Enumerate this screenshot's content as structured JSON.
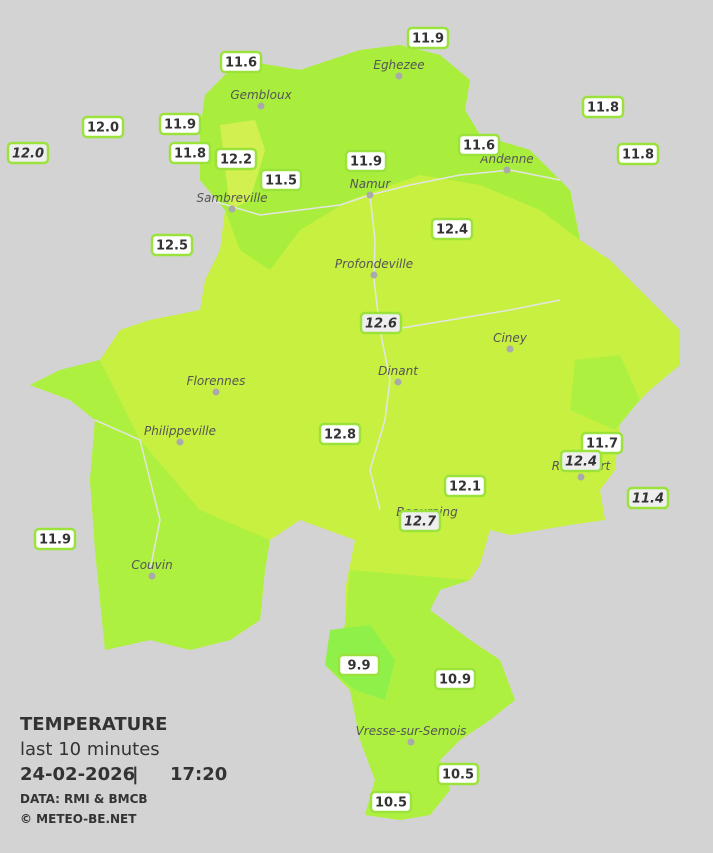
{
  "legend": {
    "title": "TEMPERATURE",
    "subtitle": "last 10 minutes",
    "date": "24-02-2026",
    "time": "17:20",
    "source": "DATA: RMI & BMCB",
    "copyright": "© METEO-BE.NET"
  },
  "places": [
    "Eghezee",
    "Gembloux",
    "Andenne",
    "Namur",
    "Sambreville",
    "Profondeville",
    "Ciney",
    "Dinant",
    "Florennes",
    "Philippeville",
    "Rochefort",
    "Beauraing",
    "Couvin",
    "Vresse-sur-Semois"
  ],
  "stations": [
    {
      "label": "11.9"
    },
    {
      "label": "11.6"
    },
    {
      "label": "11.8"
    },
    {
      "label": "12.0"
    },
    {
      "label": "11.9"
    },
    {
      "label": "12.0",
      "italic": true
    },
    {
      "label": "11.8"
    },
    {
      "label": "12.2"
    },
    {
      "label": "11.9"
    },
    {
      "label": "11.6"
    },
    {
      "label": "11.8"
    },
    {
      "label": "11.5"
    },
    {
      "label": "12.5"
    },
    {
      "label": "12.4"
    },
    {
      "label": "12.6",
      "italic": true
    },
    {
      "label": "12.8"
    },
    {
      "label": "11.7"
    },
    {
      "label": "12.4",
      "italic": true
    },
    {
      "label": "12.1"
    },
    {
      "label": "11.4",
      "italic": true
    },
    {
      "label": "12.7",
      "italic": true
    },
    {
      "label": "11.9"
    },
    {
      "label": "9.9"
    },
    {
      "label": "10.9"
    },
    {
      "label": "10.5"
    },
    {
      "label": "10.5"
    }
  ]
}
